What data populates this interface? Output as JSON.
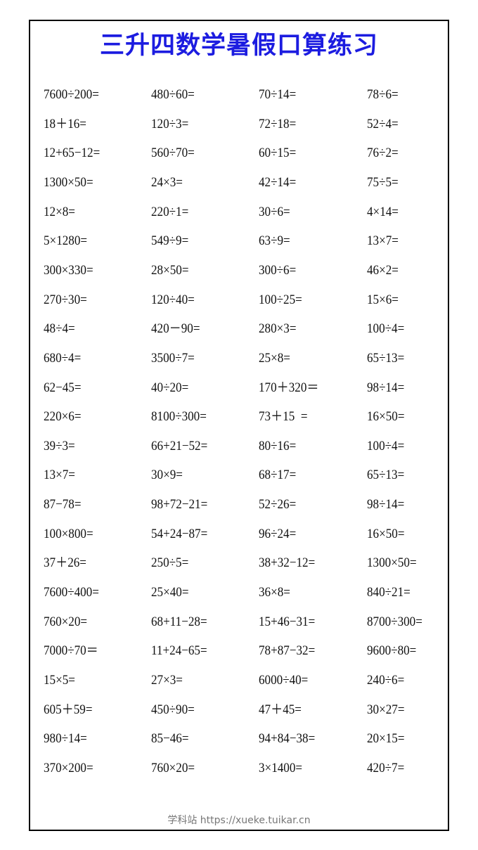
{
  "title": "三升四数学暑假口算练习",
  "rows": [
    [
      "7600÷200=",
      "480÷60=",
      "70÷14=",
      "78÷6="
    ],
    [
      "18＋16=",
      "120÷3=",
      "72÷18=",
      "52÷4="
    ],
    [
      "12+65−12=",
      "560÷70=",
      "60÷15=",
      "76÷2="
    ],
    [
      "1300×50=",
      "24×3=",
      "42÷14=",
      "75÷5="
    ],
    [
      "12×8=",
      "220÷1=",
      "30÷6=",
      "4×14="
    ],
    [
      "5×1280=",
      "549÷9=",
      "63÷9=",
      "13×7="
    ],
    [
      "300×330=",
      "28×50=",
      "300÷6=",
      "46×2="
    ],
    [
      "270÷30=",
      "120÷40=",
      "100÷25=",
      "15×6="
    ],
    [
      "48÷4=",
      "420－90=",
      "280×3=",
      "100÷4="
    ],
    [
      "680÷4=",
      "3500÷7=",
      "25×8=",
      "65÷13="
    ],
    [
      "62−45=",
      "40÷20=",
      "170＋320＝",
      "98÷14="
    ],
    [
      "220×6=",
      "8100÷300=",
      "73＋15  =",
      "16×50="
    ],
    [
      "39÷3=",
      "66+21−52=",
      "80÷16=",
      "100÷4="
    ],
    [
      "13×7=",
      "30×9=",
      "68÷17=",
      "65÷13="
    ],
    [
      "87−78=",
      "98+72−21=",
      "52÷26=",
      "98÷14="
    ],
    [
      "100×800=",
      "54+24−87=",
      "96÷24=",
      "16×50="
    ],
    [
      "37＋26=",
      "250÷5=",
      "38+32−12=",
      "1300×50="
    ],
    [
      "7600÷400=",
      "25×40=",
      "36×8=",
      "840÷21="
    ],
    [
      "760×20=",
      "68+11−28=",
      "15+46−31=",
      "8700÷300="
    ],
    [
      "7000÷70＝",
      "11+24−65=",
      "78+87−32=",
      "9600÷80="
    ],
    [
      "15×5=",
      "27×3=",
      "6000÷40=",
      "240÷6="
    ],
    [
      "605＋59=",
      "450÷90=",
      "47＋45=",
      "30×27="
    ],
    [
      "980÷14=",
      "85−46=",
      "94+84−38=",
      "20×15="
    ],
    [
      "370×200=",
      "760×20=",
      "3×1400=",
      "420÷7="
    ]
  ],
  "footer": "学科站 https://xueke.tuikar.cn",
  "colors": {
    "title": "#1c1ce0",
    "border": "#000000"
  }
}
